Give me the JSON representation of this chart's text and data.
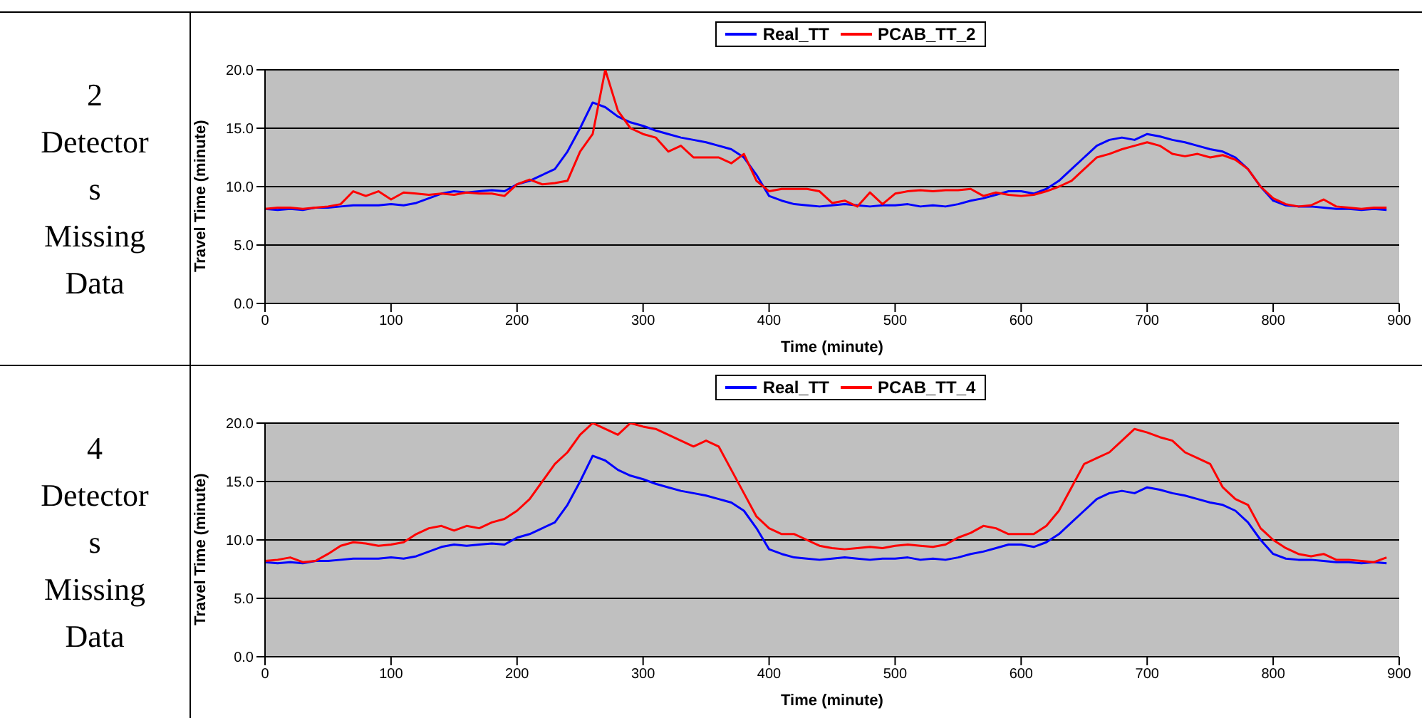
{
  "chart_data": [
    {
      "type": "line",
      "annotations": [
        "2 Detectors Missing Data"
      ],
      "xlabel": "Time (minute)",
      "ylabel": "Travel Time (minute)",
      "x": [
        0,
        10,
        20,
        30,
        40,
        50,
        60,
        70,
        80,
        90,
        100,
        110,
        120,
        130,
        140,
        150,
        160,
        170,
        180,
        190,
        200,
        210,
        220,
        230,
        240,
        250,
        260,
        270,
        280,
        290,
        300,
        310,
        320,
        330,
        340,
        350,
        360,
        370,
        380,
        390,
        400,
        410,
        420,
        430,
        440,
        450,
        460,
        470,
        480,
        490,
        500,
        510,
        520,
        530,
        540,
        550,
        560,
        570,
        580,
        590,
        600,
        610,
        620,
        630,
        640,
        650,
        660,
        670,
        680,
        690,
        700,
        710,
        720,
        730,
        740,
        750,
        760,
        770,
        780,
        790,
        800,
        810,
        820,
        830,
        840,
        850,
        860,
        870,
        880,
        890
      ],
      "series": [
        {
          "name": "Real_TT",
          "color": "#0000ff",
          "values": [
            8.1,
            8.0,
            8.1,
            8.0,
            8.2,
            8.2,
            8.3,
            8.4,
            8.4,
            8.4,
            8.5,
            8.4,
            8.6,
            9.0,
            9.4,
            9.6,
            9.5,
            9.6,
            9.7,
            9.6,
            10.2,
            10.5,
            11.0,
            11.5,
            13.0,
            15.0,
            17.2,
            16.8,
            16.0,
            15.5,
            15.2,
            14.8,
            14.5,
            14.2,
            14.0,
            13.8,
            13.5,
            13.2,
            12.5,
            11.0,
            9.2,
            8.8,
            8.5,
            8.4,
            8.3,
            8.4,
            8.5,
            8.4,
            8.3,
            8.4,
            8.4,
            8.5,
            8.3,
            8.4,
            8.3,
            8.5,
            8.8,
            9.0,
            9.3,
            9.6,
            9.6,
            9.4,
            9.8,
            10.5,
            11.5,
            12.5,
            13.5,
            14.0,
            14.2,
            14.0,
            14.5,
            14.3,
            14.0,
            13.8,
            13.5,
            13.2,
            13.0,
            12.5,
            11.5,
            10.0,
            8.8,
            8.4,
            8.3,
            8.3,
            8.2,
            8.1,
            8.1,
            8.0,
            8.1,
            8.0
          ]
        },
        {
          "name": "PCAB_TT_2",
          "color": "#ff0000",
          "values": [
            8.1,
            8.2,
            8.2,
            8.1,
            8.2,
            8.3,
            8.5,
            9.6,
            9.2,
            9.6,
            8.9,
            9.5,
            9.4,
            9.3,
            9.4,
            9.3,
            9.5,
            9.4,
            9.4,
            9.2,
            10.2,
            10.6,
            10.2,
            10.3,
            10.5,
            13.0,
            14.5,
            20.0,
            16.5,
            15.0,
            14.5,
            14.2,
            13.0,
            13.5,
            12.5,
            12.5,
            12.5,
            12.0,
            12.8,
            10.5,
            9.6,
            9.8,
            9.8,
            9.8,
            9.6,
            8.6,
            8.8,
            8.3,
            9.5,
            8.5,
            9.4,
            9.6,
            9.7,
            9.6,
            9.7,
            9.7,
            9.8,
            9.2,
            9.5,
            9.3,
            9.2,
            9.3,
            9.6,
            10.0,
            10.5,
            11.5,
            12.5,
            12.8,
            13.2,
            13.5,
            13.8,
            13.5,
            12.8,
            12.6,
            12.8,
            12.5,
            12.7,
            12.3,
            11.5,
            10.0,
            9.0,
            8.5,
            8.3,
            8.4,
            8.9,
            8.3,
            8.2,
            8.1,
            8.2,
            8.2
          ]
        }
      ],
      "xlim": [
        0,
        900
      ],
      "xticks": [
        0,
        100,
        200,
        300,
        400,
        500,
        600,
        700,
        800,
        900
      ],
      "ylim": [
        0,
        20
      ],
      "yticks": [
        {
          "value": 0,
          "label": "0.0"
        },
        {
          "value": 5,
          "label": "5.0"
        },
        {
          "value": 10,
          "label": "10.0"
        },
        {
          "value": 15,
          "label": "15.0"
        },
        {
          "value": 20,
          "label": "20.0"
        }
      ],
      "grid": "y",
      "legend": "top",
      "marker": "none",
      "line_style": "solid"
    },
    {
      "type": "line",
      "annotations": [
        "4 Detectors Missing Data"
      ],
      "xlabel": "Time (minute)",
      "ylabel": "Travel Time (minute)",
      "x": [
        0,
        10,
        20,
        30,
        40,
        50,
        60,
        70,
        80,
        90,
        100,
        110,
        120,
        130,
        140,
        150,
        160,
        170,
        180,
        190,
        200,
        210,
        220,
        230,
        240,
        250,
        260,
        270,
        280,
        290,
        300,
        310,
        320,
        330,
        340,
        350,
        360,
        370,
        380,
        390,
        400,
        410,
        420,
        430,
        440,
        450,
        460,
        470,
        480,
        490,
        500,
        510,
        520,
        530,
        540,
        550,
        560,
        570,
        580,
        590,
        600,
        610,
        620,
        630,
        640,
        650,
        660,
        670,
        680,
        690,
        700,
        710,
        720,
        730,
        740,
        750,
        760,
        770,
        780,
        790,
        800,
        810,
        820,
        830,
        840,
        850,
        860,
        870,
        880,
        890
      ],
      "series": [
        {
          "name": "Real_TT",
          "color": "#0000ff",
          "values": [
            8.1,
            8.0,
            8.1,
            8.0,
            8.2,
            8.2,
            8.3,
            8.4,
            8.4,
            8.4,
            8.5,
            8.4,
            8.6,
            9.0,
            9.4,
            9.6,
            9.5,
            9.6,
            9.7,
            9.6,
            10.2,
            10.5,
            11.0,
            11.5,
            13.0,
            15.0,
            17.2,
            16.8,
            16.0,
            15.5,
            15.2,
            14.8,
            14.5,
            14.2,
            14.0,
            13.8,
            13.5,
            13.2,
            12.5,
            11.0,
            9.2,
            8.8,
            8.5,
            8.4,
            8.3,
            8.4,
            8.5,
            8.4,
            8.3,
            8.4,
            8.4,
            8.5,
            8.3,
            8.4,
            8.3,
            8.5,
            8.8,
            9.0,
            9.3,
            9.6,
            9.6,
            9.4,
            9.8,
            10.5,
            11.5,
            12.5,
            13.5,
            14.0,
            14.2,
            14.0,
            14.5,
            14.3,
            14.0,
            13.8,
            13.5,
            13.2,
            13.0,
            12.5,
            11.5,
            10.0,
            8.8,
            8.4,
            8.3,
            8.3,
            8.2,
            8.1,
            8.1,
            8.0,
            8.1,
            8.0
          ]
        },
        {
          "name": "PCAB_TT_4",
          "color": "#ff0000",
          "values": [
            8.2,
            8.3,
            8.5,
            8.1,
            8.2,
            8.8,
            9.5,
            9.8,
            9.7,
            9.5,
            9.6,
            9.8,
            10.5,
            11.0,
            11.2,
            10.8,
            11.2,
            11.0,
            11.5,
            11.8,
            12.5,
            13.5,
            15.0,
            16.5,
            17.5,
            19.0,
            20.0,
            19.5,
            19.0,
            20.0,
            19.7,
            19.5,
            19.0,
            18.5,
            18.0,
            18.5,
            18.0,
            16.0,
            14.0,
            12.0,
            11.0,
            10.5,
            10.5,
            10.0,
            9.5,
            9.3,
            9.2,
            9.3,
            9.4,
            9.3,
            9.5,
            9.6,
            9.5,
            9.4,
            9.6,
            10.2,
            10.6,
            11.2,
            11.0,
            10.5,
            10.5,
            10.5,
            11.2,
            12.5,
            14.5,
            16.5,
            17.0,
            17.5,
            18.5,
            19.5,
            19.2,
            18.8,
            18.5,
            17.5,
            17.0,
            16.5,
            14.5,
            13.5,
            13.0,
            11.0,
            10.0,
            9.3,
            8.8,
            8.6,
            8.8,
            8.3,
            8.3,
            8.2,
            8.1,
            8.5
          ]
        }
      ],
      "xlim": [
        0,
        900
      ],
      "xticks": [
        0,
        100,
        200,
        300,
        400,
        500,
        600,
        700,
        800,
        900
      ],
      "ylim": [
        0,
        20
      ],
      "yticks": [
        {
          "value": 0,
          "label": "0.0"
        },
        {
          "value": 5,
          "label": "5.0"
        },
        {
          "value": 10,
          "label": "10.0"
        },
        {
          "value": 15,
          "label": "15.0"
        },
        {
          "value": 20,
          "label": "20.0"
        }
      ],
      "grid": "y",
      "legend": "top",
      "marker": "none",
      "line_style": "solid"
    }
  ]
}
